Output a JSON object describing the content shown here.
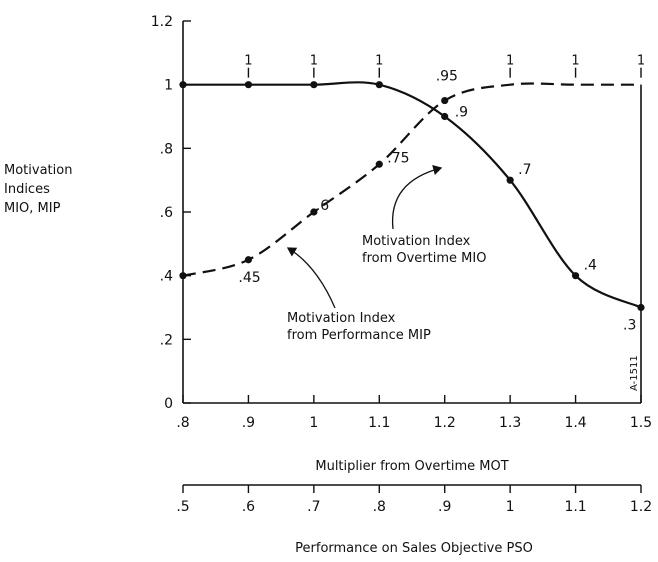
{
  "figure_id": "A-1511",
  "chart_data": {
    "type": "line",
    "ylabel_lines": [
      "Motivation",
      "Indices",
      "MIO, MIP"
    ],
    "xlabel": "Multiplier from Overtime   MOT",
    "x2label": "Performance on Sales Objective   PSO",
    "xlim": [
      0.8,
      1.5
    ],
    "ylim": [
      0,
      1.2
    ],
    "x_ticks": [
      {
        "v": 0.8,
        "label": ".8"
      },
      {
        "v": 0.9,
        "label": ".9"
      },
      {
        "v": 1.0,
        "label": "1"
      },
      {
        "v": 1.1,
        "label": "1.1"
      },
      {
        "v": 1.2,
        "label": "1.2"
      },
      {
        "v": 1.3,
        "label": "1.3"
      },
      {
        "v": 1.4,
        "label": "1.4"
      },
      {
        "v": 1.5,
        "label": "1.5"
      }
    ],
    "y_ticks": [
      {
        "v": 0,
        "label": "0"
      },
      {
        "v": 0.2,
        "label": ".2"
      },
      {
        "v": 0.4,
        "label": ".4"
      },
      {
        "v": 0.6,
        "label": ".6"
      },
      {
        "v": 0.8,
        "label": ".8"
      },
      {
        "v": 1.0,
        "label": "1"
      },
      {
        "v": 1.2,
        "label": "1.2"
      }
    ],
    "x2_ticks": [
      ".5",
      ".6",
      ".7",
      ".8",
      ".9",
      "1",
      "1.1",
      "1.2"
    ],
    "top_tick_labels": [
      "1",
      "1",
      "1",
      "1",
      "1",
      "1"
    ],
    "series": [
      {
        "name": "Motivation Index from Overtime MIO",
        "style": "solid",
        "x": [
          0.8,
          0.9,
          1.0,
          1.1,
          1.2,
          1.3,
          1.4,
          1.5
        ],
        "y": [
          1.0,
          1.0,
          1.0,
          1.0,
          0.9,
          0.7,
          0.4,
          0.3
        ],
        "labels": [
          "",
          "",
          "",
          "",
          ".9",
          ".7",
          ".4",
          ".3"
        ]
      },
      {
        "name": "Motivation Index from Performance MIP",
        "style": "dashed",
        "x": [
          0.8,
          0.9,
          1.0,
          1.1,
          1.2,
          1.3,
          1.4,
          1.5
        ],
        "y": [
          0.4,
          0.45,
          0.6,
          0.75,
          0.95,
          1.0,
          1.0,
          1.0
        ],
        "labels": [
          "",
          ".45",
          ".6",
          ".75",
          ".95",
          "",
          "",
          ""
        ]
      }
    ],
    "annotations": [
      {
        "lines": [
          "Motivation Index",
          "from Overtime  MIO"
        ]
      },
      {
        "lines": [
          "Motivation Index",
          "from Performance  MIP"
        ]
      }
    ],
    "grid": false
  }
}
